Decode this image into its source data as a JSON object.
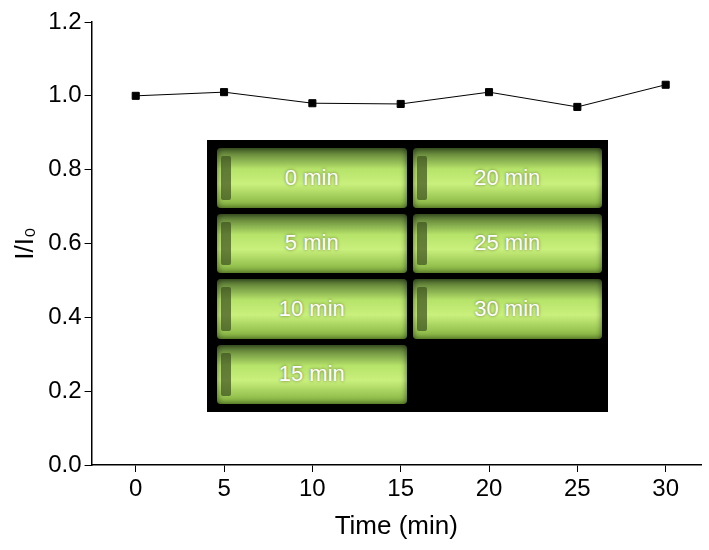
{
  "chart_data": {
    "type": "line",
    "x_label": "Time (min)",
    "y_label": "I/I₀",
    "x": [
      0,
      5,
      10,
      15,
      20,
      25,
      30
    ],
    "series": [
      {
        "name": "I/I₀",
        "color": "#000000",
        "marker": "square",
        "line_style": "solid",
        "values": [
          1.0,
          1.01,
          0.98,
          0.978,
          1.01,
          0.97,
          1.03
        ]
      }
    ],
    "xlim": [
      -2.5,
      32
    ],
    "xticks": [
      0,
      5,
      10,
      15,
      20,
      25,
      30
    ],
    "ylim": [
      0,
      1.2
    ],
    "yticks": [
      {
        "value": 0,
        "label": "0.0"
      },
      0.2,
      0.4,
      0.6,
      0.8,
      {
        "value": 1,
        "label": "1.0"
      },
      1.2
    ],
    "grid": false,
    "annotations": [
      "0 min",
      "5 min",
      "10 min",
      "15 min",
      "20 min",
      "25 min",
      "30 min"
    ]
  }
}
